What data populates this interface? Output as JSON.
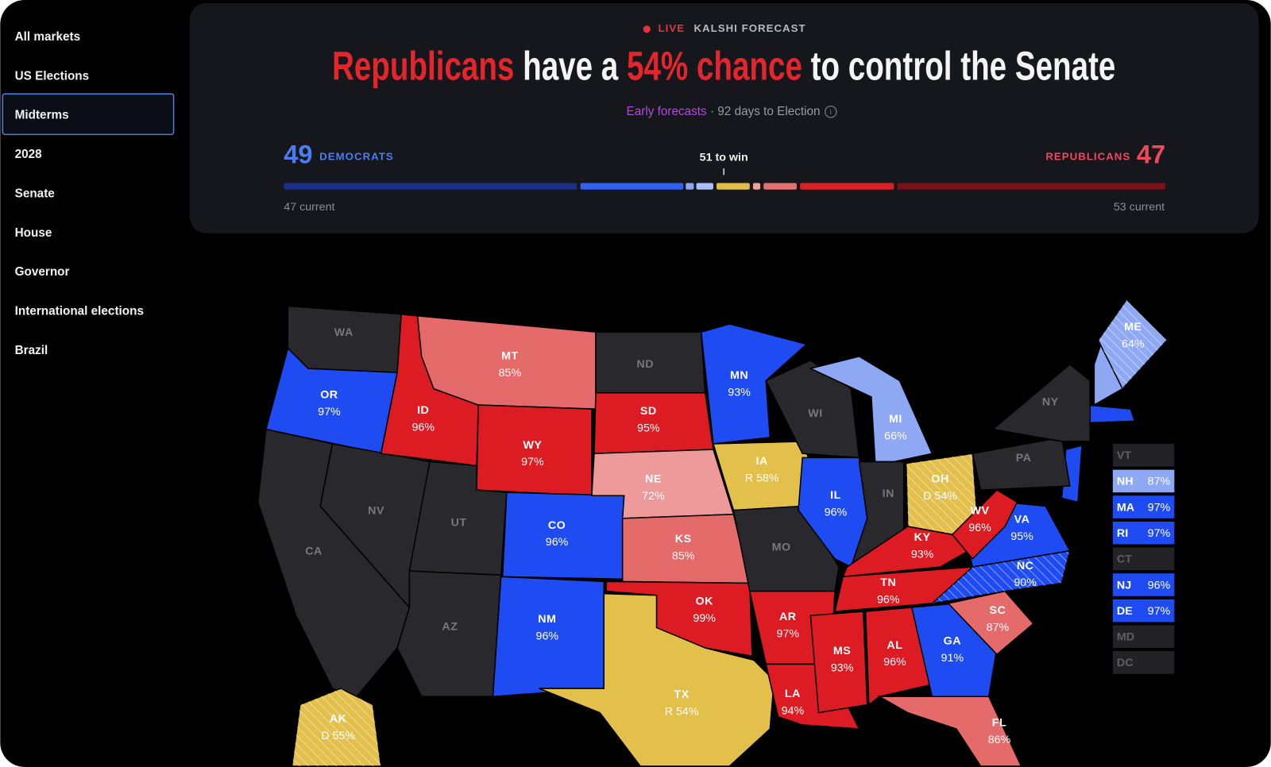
{
  "sidebar": {
    "items": [
      "All markets",
      "US Elections",
      "Midterms",
      "2028",
      "Senate",
      "House",
      "Governor",
      "International elections",
      "Brazil"
    ]
  },
  "header": {
    "live": "LIVE",
    "source": "KALSHI FORECAST",
    "headline": [
      "Republicans",
      "have a",
      "54% chance",
      "to control the Senate"
    ],
    "subtitle_link": "Early forecasts",
    "subtitle": "· 92 days to Election"
  },
  "seats": {
    "dem_count": "49",
    "dem_label": "DEMOCRATS",
    "threshold": "51 to win",
    "rep_label": "REPUBLICANS",
    "rep_count": "47",
    "dem_current": "47 current",
    "rep_current": "53 current"
  },
  "map": {
    "states": [
      {
        "abbr": "WA"
      },
      {
        "abbr": "OR",
        "odds": "97%"
      },
      {
        "abbr": "CA"
      },
      {
        "abbr": "NV"
      },
      {
        "abbr": "ID",
        "odds": "96%"
      },
      {
        "abbr": "MT",
        "odds": "85%"
      },
      {
        "abbr": "WY",
        "odds": "97%"
      },
      {
        "abbr": "UT"
      },
      {
        "abbr": "AZ"
      },
      {
        "abbr": "CO",
        "odds": "96%"
      },
      {
        "abbr": "NM",
        "odds": "96%"
      },
      {
        "abbr": "ND"
      },
      {
        "abbr": "SD",
        "odds": "95%"
      },
      {
        "abbr": "NE",
        "odds": "72%"
      },
      {
        "abbr": "KS",
        "odds": "85%"
      },
      {
        "abbr": "OK",
        "odds": "99%"
      },
      {
        "abbr": "TX",
        "odds": "R 54%"
      },
      {
        "abbr": "MN",
        "odds": "93%"
      },
      {
        "abbr": "IA",
        "odds": "R 58%"
      },
      {
        "abbr": "MO"
      },
      {
        "abbr": "AR",
        "odds": "97%"
      },
      {
        "abbr": "LA",
        "odds": "94%"
      },
      {
        "abbr": "WI"
      },
      {
        "abbr": "IL",
        "odds": "96%"
      },
      {
        "abbr": "MI",
        "odds": "66%"
      },
      {
        "abbr": "IN"
      },
      {
        "abbr": "OH",
        "odds": "D 54%"
      },
      {
        "abbr": "KY",
        "odds": "93%"
      },
      {
        "abbr": "TN",
        "odds": "96%"
      },
      {
        "abbr": "MS",
        "odds": "93%"
      },
      {
        "abbr": "AL",
        "odds": "96%"
      },
      {
        "abbr": "GA",
        "odds": "91%"
      },
      {
        "abbr": "FL",
        "odds": "86%"
      },
      {
        "abbr": "SC",
        "odds": "87%"
      },
      {
        "abbr": "NC",
        "odds": "90%"
      },
      {
        "abbr": "VA",
        "odds": "95%"
      },
      {
        "abbr": "WV",
        "odds": "96%"
      },
      {
        "abbr": "PA"
      },
      {
        "abbr": "NY"
      },
      {
        "abbr": "ME",
        "odds": "64%"
      },
      {
        "abbr": "AK",
        "odds": "D 55%"
      }
    ],
    "small_states": [
      {
        "abbr": "VT"
      },
      {
        "abbr": "NH",
        "odds": "87%"
      },
      {
        "abbr": "MA",
        "odds": "97%"
      },
      {
        "abbr": "RI",
        "odds": "97%"
      },
      {
        "abbr": "CT"
      },
      {
        "abbr": "NJ",
        "odds": "96%"
      },
      {
        "abbr": "DE",
        "odds": "97%"
      },
      {
        "abbr": "MD"
      },
      {
        "abbr": "DC"
      }
    ]
  }
}
